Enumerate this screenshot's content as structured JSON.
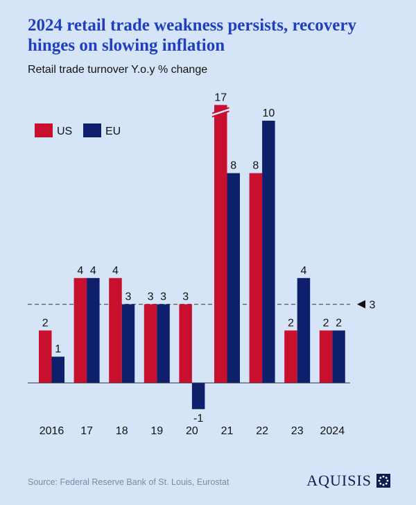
{
  "title": "2024 retail trade weakness persists, recovery hinges on slowing inflation",
  "subtitle": "Retail trade turnover Y.o.y % change",
  "source": "Source: Federal Reserve Bank of St. Louis, Eurostat",
  "brand": "AQUISIS",
  "colors": {
    "us": "#c8102e",
    "eu": "#0e1f6b",
    "title": "#1f3fbf",
    "background": "#d6e4f7"
  },
  "chart_data": {
    "type": "bar",
    "categories": [
      "2016",
      "17",
      "18",
      "19",
      "20",
      "21",
      "22",
      "23",
      "2024"
    ],
    "series": [
      {
        "name": "US",
        "values": [
          2,
          4,
          4,
          3,
          3,
          17,
          8,
          2,
          2
        ]
      },
      {
        "name": "EU",
        "values": [
          1,
          4,
          3,
          3,
          -1,
          8,
          10,
          4,
          2
        ]
      }
    ],
    "reference_line": {
      "value": 3,
      "label": "3",
      "style": "dashed"
    },
    "broken_bar": {
      "series": "US",
      "category": "21",
      "value": 17
    },
    "legend_position": "top-left",
    "grid": false
  }
}
